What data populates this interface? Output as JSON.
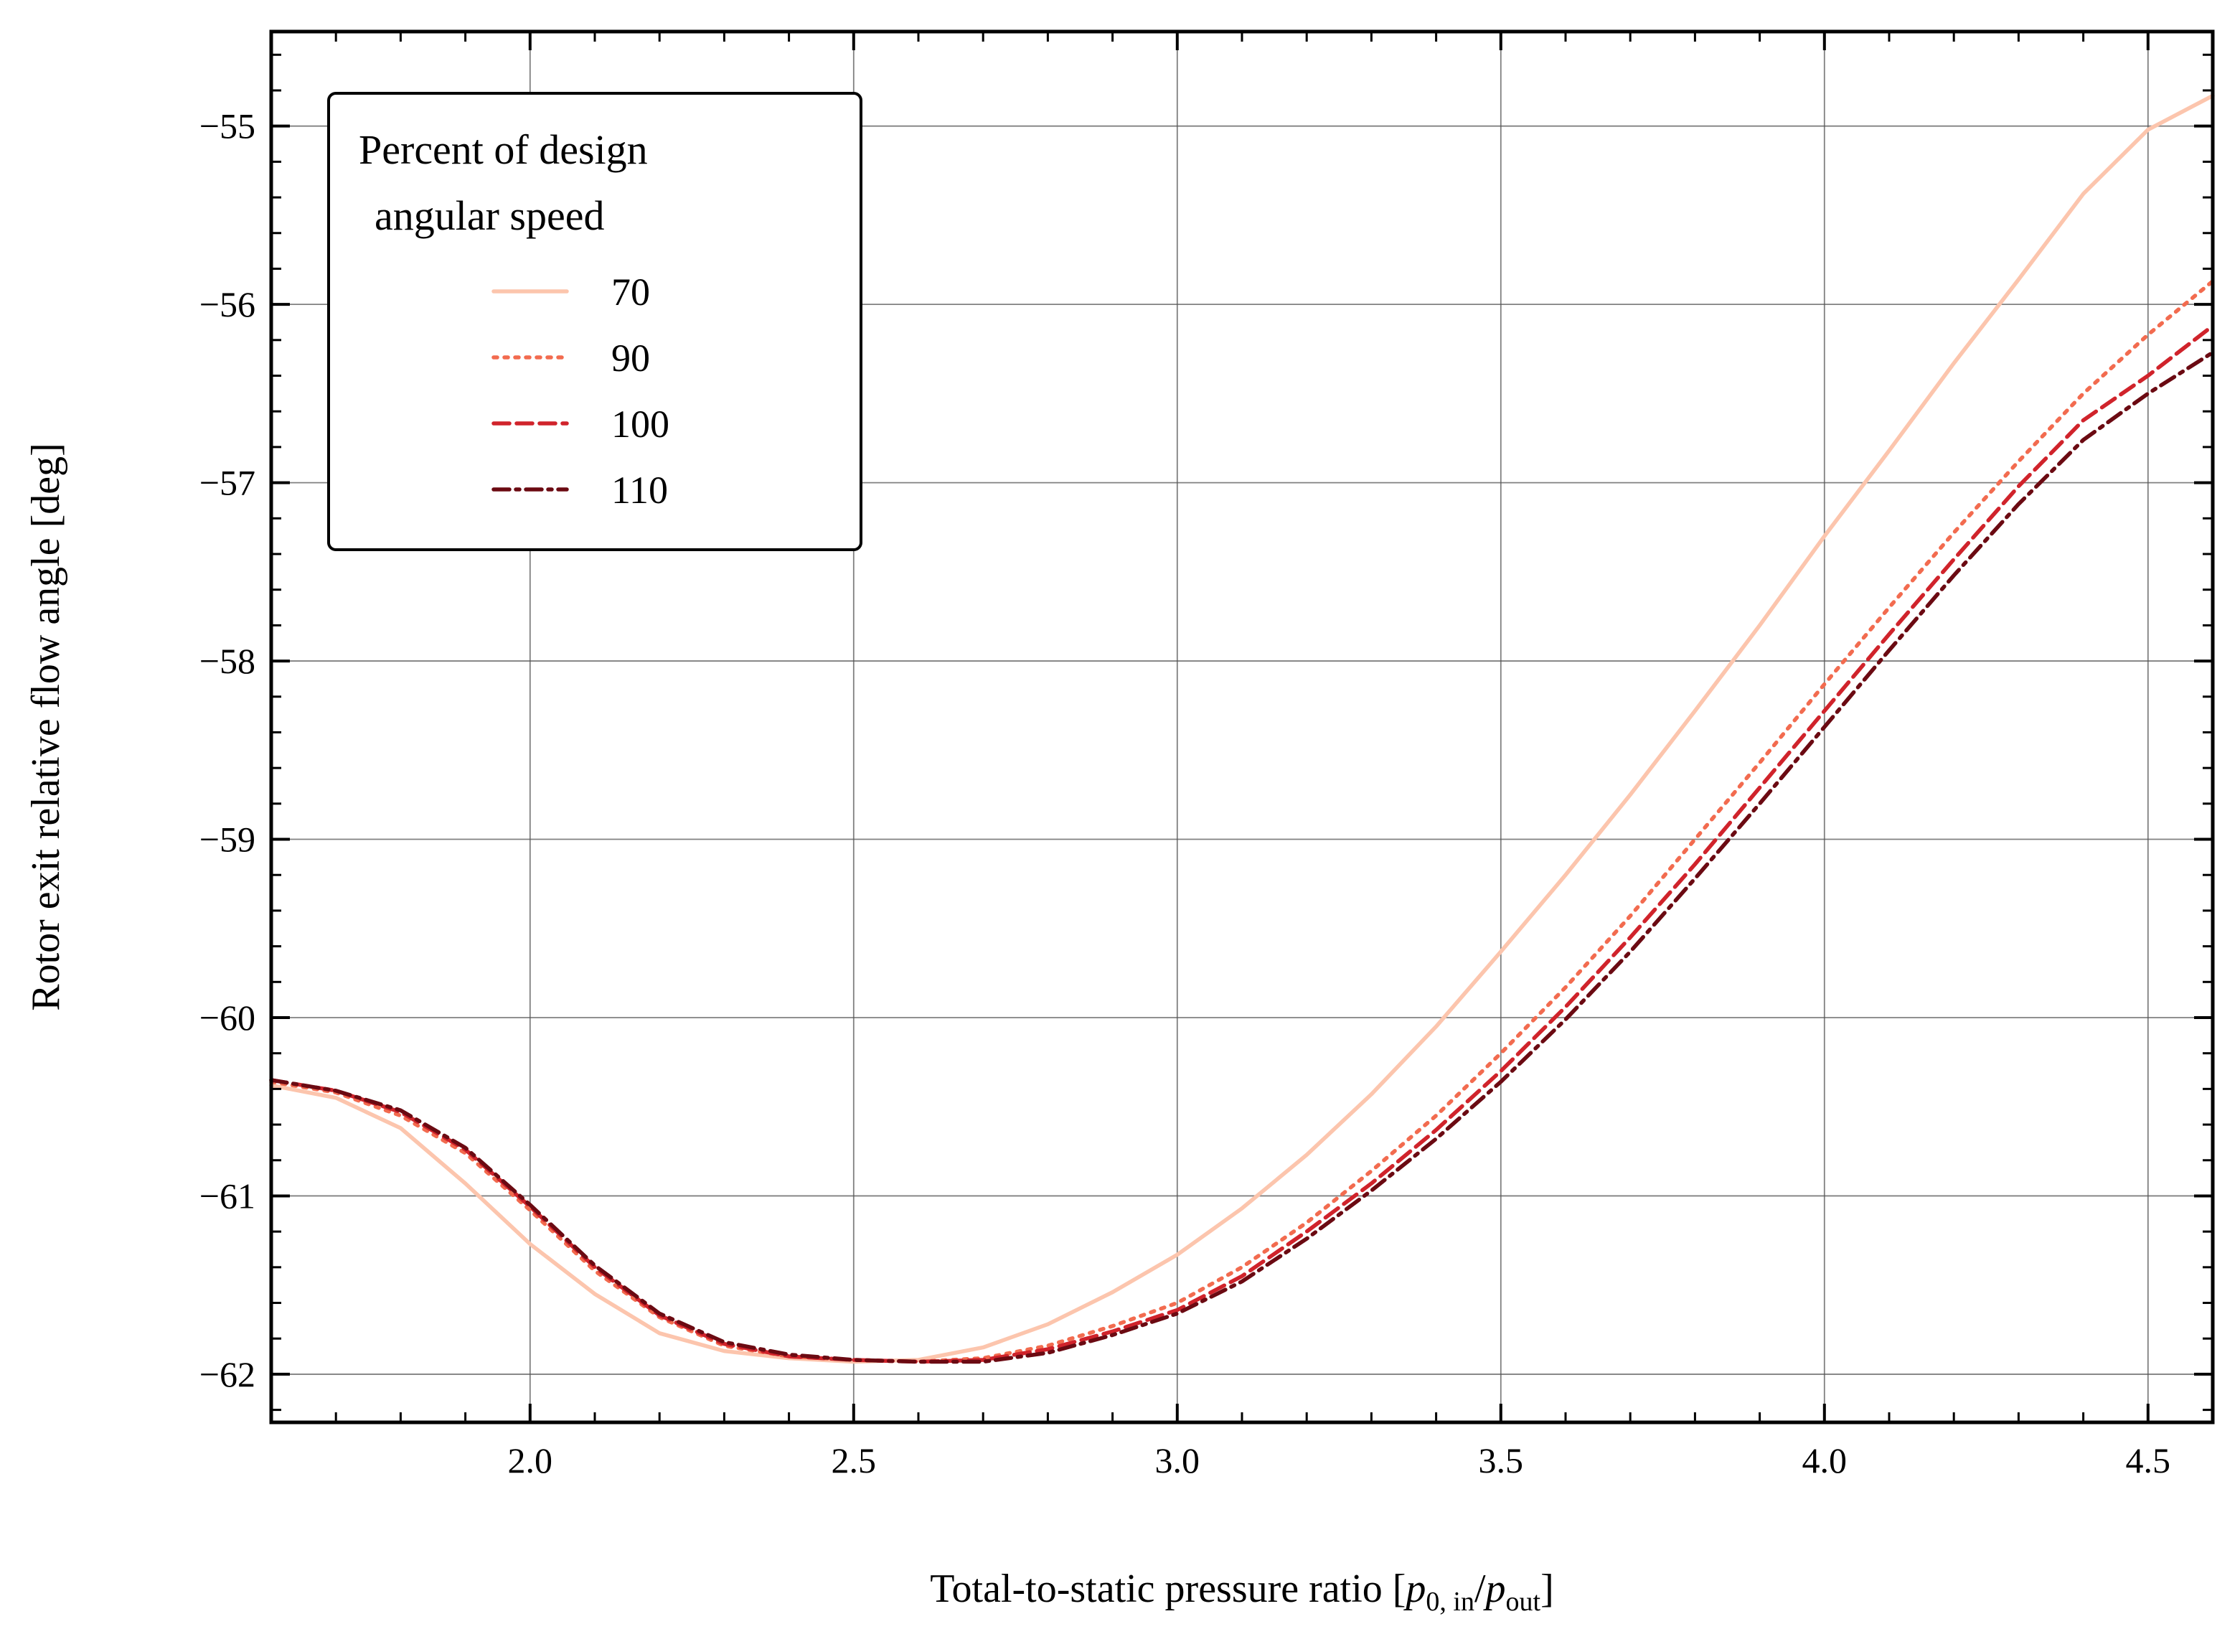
{
  "chart_data": {
    "type": "line",
    "title": "",
    "xlabel": {
      "main": "Total-to-static pressure ratio [",
      "p1": "p",
      "sub1": "0, in",
      "slash": "/",
      "p2": "p",
      "sub2": "out",
      "end": "]"
    },
    "ylabel": "Rotor exit relative flow angle [deg]",
    "xlim": [
      1.6,
      4.6
    ],
    "ylim": [
      -62.27,
      -54.47
    ],
    "xticks": [
      2.0,
      2.5,
      3.0,
      3.5,
      4.0,
      4.5
    ],
    "xtick_labels": [
      "2.0",
      "2.5",
      "3.0",
      "3.5",
      "4.0",
      "4.5"
    ],
    "yticks": [
      -62,
      -61,
      -60,
      -59,
      -58,
      -57,
      -56,
      -55
    ],
    "ytick_labels": [
      "−62",
      "−61",
      "−60",
      "−59",
      "−58",
      "−57",
      "−56",
      "−55"
    ],
    "grid": true,
    "legend": {
      "title_line1": "Percent of design",
      "title_line2": "angular speed",
      "placement": "upper-left"
    },
    "series": [
      {
        "name": "70",
        "color": "#fcc5ad",
        "dash": "solid",
        "x": [
          1.6,
          1.7,
          1.8,
          1.9,
          2.0,
          2.1,
          2.2,
          2.3,
          2.4,
          2.5,
          2.6,
          2.7,
          2.8,
          2.9,
          3.0,
          3.1,
          3.2,
          3.3,
          3.4,
          3.5,
          3.6,
          3.7,
          3.8,
          3.9,
          4.0,
          4.1,
          4.2,
          4.3,
          4.4,
          4.5,
          4.6
        ],
        "y": [
          -60.38,
          -60.45,
          -60.62,
          -60.93,
          -61.27,
          -61.55,
          -61.77,
          -61.87,
          -61.91,
          -61.93,
          -61.92,
          -61.85,
          -61.72,
          -61.54,
          -61.33,
          -61.07,
          -60.77,
          -60.43,
          -60.05,
          -59.63,
          -59.2,
          -58.75,
          -58.28,
          -57.8,
          -57.3,
          -56.82,
          -56.33,
          -55.86,
          -55.38,
          -55.02,
          -54.83
        ]
      },
      {
        "name": "90",
        "color": "#f26b4f",
        "dash": "dotted",
        "x": [
          1.6,
          1.7,
          1.8,
          1.9,
          2.0,
          2.1,
          2.2,
          2.3,
          2.4,
          2.5,
          2.6,
          2.7,
          2.8,
          2.9,
          3.0,
          3.1,
          3.2,
          3.3,
          3.4,
          3.5,
          3.6,
          3.7,
          3.8,
          3.9,
          4.0,
          4.1,
          4.2,
          4.3,
          4.4,
          4.5,
          4.6
        ],
        "y": [
          -60.36,
          -60.42,
          -60.55,
          -60.76,
          -61.08,
          -61.42,
          -61.68,
          -61.84,
          -61.9,
          -61.92,
          -61.93,
          -61.91,
          -61.84,
          -61.73,
          -61.6,
          -61.4,
          -61.15,
          -60.86,
          -60.55,
          -60.2,
          -59.83,
          -59.43,
          -59.0,
          -58.57,
          -58.13,
          -57.7,
          -57.28,
          -56.88,
          -56.5,
          -56.17,
          -55.87
        ]
      },
      {
        "name": "100",
        "color": "#d0232b",
        "dash": "dashed",
        "x": [
          1.6,
          1.7,
          1.8,
          1.9,
          2.0,
          2.1,
          2.2,
          2.3,
          2.4,
          2.5,
          2.6,
          2.7,
          2.8,
          2.9,
          3.0,
          3.1,
          3.2,
          3.3,
          3.4,
          3.5,
          3.6,
          3.7,
          3.8,
          3.9,
          4.0,
          4.1,
          4.2,
          4.3,
          4.4,
          4.5,
          4.6
        ],
        "y": [
          -60.35,
          -60.41,
          -60.53,
          -60.74,
          -61.06,
          -61.4,
          -61.67,
          -61.83,
          -61.9,
          -61.92,
          -61.93,
          -61.92,
          -61.86,
          -61.76,
          -61.64,
          -61.45,
          -61.2,
          -60.93,
          -60.63,
          -60.3,
          -59.94,
          -59.55,
          -59.14,
          -58.71,
          -58.28,
          -57.85,
          -57.43,
          -57.02,
          -56.65,
          -56.4,
          -56.12
        ]
      },
      {
        "name": "110",
        "color": "#6b0a12",
        "dash": "dashdot",
        "x": [
          1.6,
          1.7,
          1.8,
          1.9,
          2.0,
          2.1,
          2.2,
          2.3,
          2.4,
          2.5,
          2.6,
          2.7,
          2.8,
          2.9,
          3.0,
          3.1,
          3.2,
          3.3,
          3.4,
          3.5,
          3.6,
          3.7,
          3.8,
          3.9,
          4.0,
          4.1,
          4.2,
          4.3,
          4.4,
          4.5,
          4.6
        ],
        "y": [
          -60.35,
          -60.41,
          -60.52,
          -60.73,
          -61.05,
          -61.39,
          -61.66,
          -61.82,
          -61.89,
          -61.92,
          -61.93,
          -61.93,
          -61.88,
          -61.78,
          -61.66,
          -61.48,
          -61.24,
          -60.97,
          -60.68,
          -60.36,
          -60.01,
          -59.63,
          -59.22,
          -58.8,
          -58.37,
          -57.94,
          -57.52,
          -57.12,
          -56.76,
          -56.5,
          -56.27
        ]
      }
    ]
  }
}
